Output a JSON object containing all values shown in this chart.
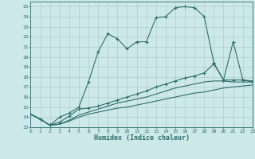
{
  "xlabel": "Humidex (Indice chaleur)",
  "xlim": [
    0,
    23
  ],
  "ylim": [
    13,
    25.5
  ],
  "xticks": [
    0,
    1,
    2,
    3,
    4,
    5,
    6,
    7,
    8,
    9,
    10,
    11,
    12,
    13,
    14,
    15,
    16,
    17,
    18,
    19,
    20,
    21,
    22,
    23
  ],
  "yticks": [
    13,
    14,
    15,
    16,
    17,
    18,
    19,
    20,
    21,
    22,
    23,
    24,
    25
  ],
  "bg_color": "#cde8e8",
  "line_color": "#2d6e6e",
  "grid_color": "#b0cccc",
  "lines": [
    {
      "x": [
        0,
        1,
        2,
        3,
        4,
        5,
        6,
        7,
        8,
        9,
        10,
        11,
        12,
        13,
        14,
        15,
        16,
        17,
        18,
        19,
        20,
        21,
        22,
        23
      ],
      "y": [
        14.3,
        13.8,
        13.2,
        14.0,
        14.4,
        15.0,
        17.5,
        20.5,
        22.3,
        21.8,
        20.8,
        21.5,
        21.5,
        23.9,
        24.0,
        24.9,
        25.0,
        24.9,
        24.0,
        19.4,
        17.7,
        21.5,
        17.7,
        17.5
      ],
      "marker": "+"
    },
    {
      "x": [
        0,
        1,
        2,
        3,
        4,
        5,
        6,
        7,
        8,
        9,
        10,
        11,
        12,
        13,
        14,
        15,
        16,
        17,
        18,
        19,
        20,
        21,
        22,
        23
      ],
      "y": [
        14.3,
        13.8,
        13.2,
        13.5,
        14.1,
        14.8,
        14.9,
        15.1,
        15.4,
        15.7,
        16.0,
        16.3,
        16.6,
        17.0,
        17.3,
        17.6,
        17.9,
        18.1,
        18.4,
        19.3,
        17.7,
        17.7,
        17.7,
        17.6
      ],
      "marker": "+"
    },
    {
      "x": [
        0,
        1,
        2,
        3,
        4,
        5,
        6,
        7,
        8,
        9,
        10,
        11,
        12,
        13,
        14,
        15,
        16,
        17,
        18,
        19,
        20,
        21,
        22,
        23
      ],
      "y": [
        14.3,
        13.8,
        13.2,
        13.3,
        13.7,
        14.2,
        14.5,
        14.8,
        15.1,
        15.4,
        15.6,
        15.8,
        16.0,
        16.3,
        16.6,
        16.9,
        17.1,
        17.3,
        17.5,
        17.6,
        17.6,
        17.5,
        17.5,
        17.5
      ],
      "marker": null
    },
    {
      "x": [
        0,
        1,
        2,
        3,
        4,
        5,
        6,
        7,
        8,
        9,
        10,
        11,
        12,
        13,
        14,
        15,
        16,
        17,
        18,
        19,
        20,
        21,
        22,
        23
      ],
      "y": [
        14.3,
        13.8,
        13.2,
        13.3,
        13.6,
        14.0,
        14.3,
        14.5,
        14.7,
        14.9,
        15.0,
        15.2,
        15.4,
        15.6,
        15.8,
        16.0,
        16.2,
        16.4,
        16.5,
        16.7,
        16.9,
        17.0,
        17.1,
        17.2
      ],
      "marker": null
    }
  ]
}
